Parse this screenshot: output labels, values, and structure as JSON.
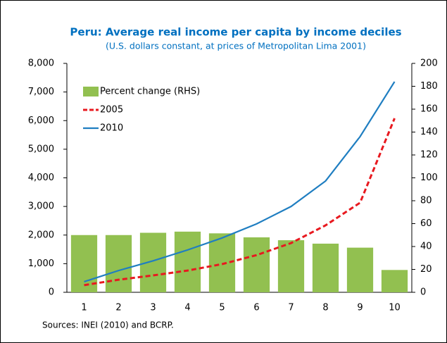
{
  "chart_data": {
    "type": "bar-line",
    "title": "Peru: Average real income per capita by income deciles",
    "subtitle": "(U.S. dollars constant, at prices of Metropolitan Lima 2001)",
    "source": "Sources: INEI (2010) and BCRP.",
    "categories": [
      "1",
      "2",
      "3",
      "4",
      "5",
      "6",
      "7",
      "8",
      "9",
      "10"
    ],
    "series": [
      {
        "name": "Percent change (RHS)",
        "type": "bar",
        "axis": "y2",
        "color": "#92c050",
        "values": [
          50,
          50,
          52,
          53,
          51.5,
          48,
          45.5,
          42.5,
          39,
          19.5
        ]
      },
      {
        "name": "2005",
        "type": "line",
        "style": "dashed",
        "color": "#e8191f",
        "values": [
          250,
          440,
          590,
          760,
          985,
          1300,
          1720,
          2340,
          3130,
          6080
        ]
      },
      {
        "name": "2010",
        "type": "line",
        "style": "solid",
        "color": "#1f7ec1",
        "values": [
          370,
          760,
          1100,
          1480,
          1900,
          2390,
          3000,
          3890,
          5440,
          7360
        ]
      }
    ],
    "ylim": [
      0,
      8000
    ],
    "yticks": [
      0,
      {
        "value": 1000,
        "label": "1,000"
      },
      {
        "value": 2000,
        "label": "2,000"
      },
      {
        "value": 3000,
        "label": "3,000"
      },
      {
        "value": 4000,
        "label": "4,000"
      },
      {
        "value": 5000,
        "label": "5,000"
      },
      {
        "value": 6000,
        "label": "6,000"
      },
      {
        "value": 7000,
        "label": "7,000"
      },
      {
        "value": 8000,
        "label": "8,000"
      }
    ],
    "y2lim": [
      0,
      200
    ],
    "y2ticks": [
      0,
      20,
      40,
      60,
      80,
      100,
      120,
      140,
      160,
      180,
      200
    ],
    "grid": false,
    "legend": "upper-left"
  }
}
